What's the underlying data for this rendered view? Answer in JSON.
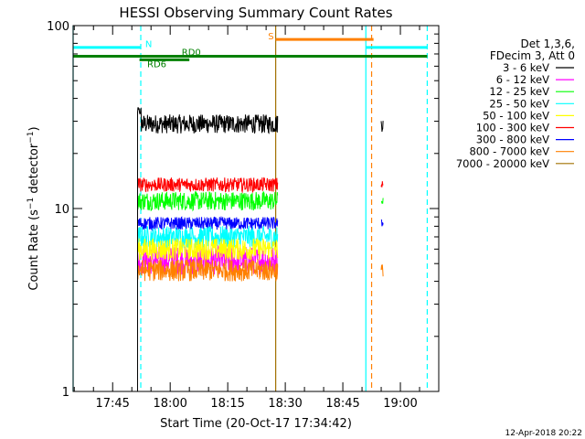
{
  "chart_data": {
    "type": "line",
    "title": "HESSI Observing Summary Count Rates",
    "xlabel": "Start Time (20-Oct-17 17:34:42)",
    "ylabel": "Count Rate (s⁻¹ detector⁻¹)",
    "ylabel_main": "Count Rate (s",
    "ylabel_sup1": "−1",
    "ylabel_mid": " detector",
    "ylabel_sup2": "−1",
    "ylabel_end": ")",
    "yscale": "log",
    "ylim": [
      1,
      100
    ],
    "xlim": [
      "17:34:42",
      "19:10:00"
    ],
    "xticks": [
      {
        "t": "17:45",
        "label": "17:45"
      },
      {
        "t": "18:00",
        "label": "18:00"
      },
      {
        "t": "18:15",
        "label": "18:15"
      },
      {
        "t": "18:30",
        "label": "18:30"
      },
      {
        "t": "18:45",
        "label": "18:45"
      },
      {
        "t": "19:00",
        "label": "19:00"
      }
    ],
    "yticks": [
      {
        "v": 1,
        "label": "1"
      },
      {
        "v": 10,
        "label": "10"
      },
      {
        "v": 100,
        "label": "100"
      }
    ],
    "legend_header": [
      "Det 1,3,6,",
      "FDecim 3, Att 0"
    ],
    "legend_position": "right",
    "series": [
      {
        "name": "3 - 6 keV",
        "color": "#000000",
        "segments": [
          {
            "start": "17:51:30",
            "end": "18:28:00",
            "mean": 29,
            "jitter": 0.12,
            "extra_start": 34,
            "extra_end": 32
          },
          {
            "start": "18:55:00",
            "end": "18:55:30",
            "mean": 29,
            "jitter": 0.1
          }
        ]
      },
      {
        "name": "6 - 12 keV",
        "color": "#ff00ff",
        "segments": [
          {
            "start": "17:51:30",
            "end": "18:28:00",
            "mean": 5.2,
            "jitter": 0.18
          }
        ]
      },
      {
        "name": "12 - 25 keV",
        "color": "#00ff00",
        "segments": [
          {
            "start": "17:51:30",
            "end": "18:28:00",
            "mean": 11.0,
            "jitter": 0.12
          },
          {
            "start": "18:55:00",
            "end": "18:55:30",
            "mean": 11.0,
            "jitter": 0.05
          }
        ]
      },
      {
        "name": "25 - 50 keV",
        "color": "#00ffff",
        "segments": [
          {
            "start": "17:51:30",
            "end": "18:28:00",
            "mean": 7.0,
            "jitter": 0.14
          }
        ]
      },
      {
        "name": "50 - 100 keV",
        "color": "#ffff00",
        "segments": [
          {
            "start": "17:51:30",
            "end": "18:28:00",
            "mean": 6.0,
            "jitter": 0.14
          }
        ]
      },
      {
        "name": "100 - 300 keV",
        "color": "#ff0000",
        "segments": [
          {
            "start": "17:51:30",
            "end": "18:28:00",
            "mean": 13.5,
            "jitter": 0.09
          },
          {
            "start": "18:55:00",
            "end": "18:55:30",
            "mean": 13.5,
            "jitter": 0.05
          }
        ]
      },
      {
        "name": "300 - 800 keV",
        "color": "#0000ff",
        "segments": [
          {
            "start": "17:51:30",
            "end": "18:28:00",
            "mean": 8.3,
            "jitter": 0.08
          },
          {
            "start": "18:55:00",
            "end": "18:55:30",
            "mean": 8.3,
            "jitter": 0.05
          }
        ]
      },
      {
        "name": "800 - 7000 keV",
        "color": "#ff8000",
        "segments": [
          {
            "start": "17:51:30",
            "end": "18:28:00",
            "mean": 4.6,
            "jitter": 0.14
          },
          {
            "start": "18:55:00",
            "end": "18:55:30",
            "mean": 4.6,
            "jitter": 0.08
          }
        ]
      },
      {
        "name": "7000 - 20000 keV",
        "color": "#a07000",
        "segments": []
      }
    ],
    "flags": [
      {
        "label": "N",
        "color": "#00ffff",
        "value": 76,
        "segments": [
          [
            "17:34:42",
            "17:52:20"
          ],
          [
            "18:51:00",
            "19:07:00"
          ]
        ],
        "label_at": "17:53:30",
        "label_value": 80
      },
      {
        "label": "S",
        "color": "#ff8000",
        "value": 84,
        "segments": [
          [
            "18:27:30",
            "18:53:00"
          ]
        ],
        "label_at": "18:25:30",
        "label_value": 88
      },
      {
        "label": "RD0",
        "color": "#008000",
        "value": 68,
        "segments": [
          [
            "17:34:42",
            "19:07:00"
          ]
        ],
        "label_at": "18:03:00",
        "label_value": 72
      },
      {
        "label": "RD6",
        "color": "#008000",
        "value": 65,
        "segments": [
          [
            "17:52:00",
            "18:05:00"
          ]
        ],
        "label_at": "17:54:00",
        "label_value": 62
      }
    ],
    "vlines": [
      {
        "t": "17:52:20",
        "color": "#00ffff",
        "style": "dashed"
      },
      {
        "t": "18:27:30",
        "color": "#a07000",
        "style": "solid"
      },
      {
        "t": "18:51:00",
        "color": "#00ffff",
        "style": "solid"
      },
      {
        "t": "18:52:30",
        "color": "#ff8000",
        "style": "dashed"
      },
      {
        "t": "19:07:00",
        "color": "#00ffff",
        "style": "dashed"
      },
      {
        "t": "17:34:42",
        "color": "#00ffff",
        "style": "solid"
      }
    ],
    "black_start": {
      "t": "17:51:30",
      "from": 1,
      "to": 34
    },
    "footer": "12-Apr-2018 20:22"
  }
}
